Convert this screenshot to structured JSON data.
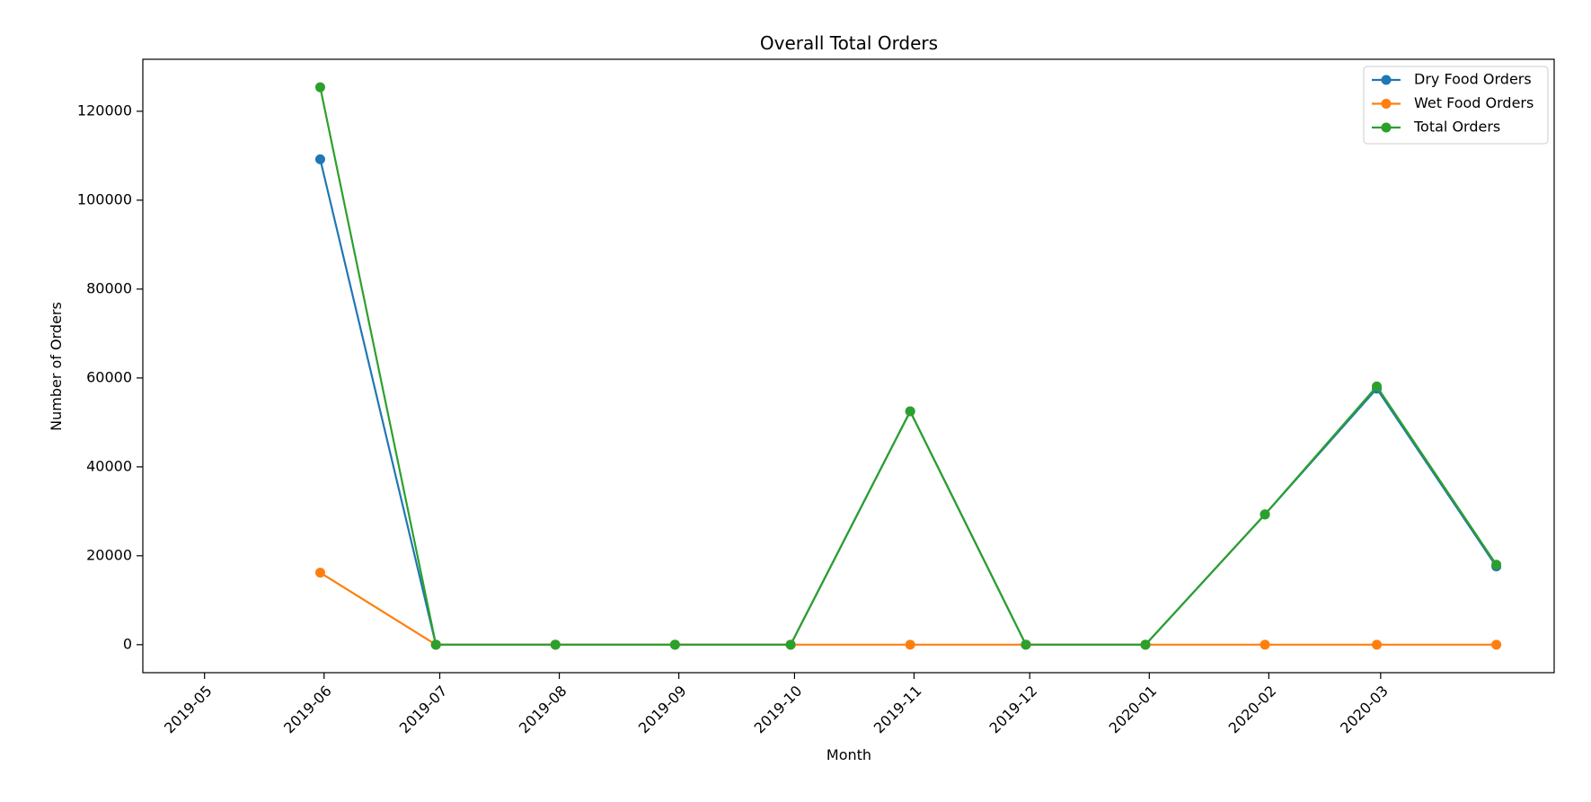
{
  "chart_data": {
    "type": "line",
    "title": "Overall Total Orders",
    "xlabel": "Month",
    "ylabel": "Number of Orders",
    "x_tick_labels": [
      "2019-05",
      "2019-06",
      "2019-07",
      "2019-08",
      "2019-09",
      "2019-10",
      "2019-11",
      "2019-12",
      "2020-01",
      "2020-02",
      "2020-03"
    ],
    "x_dates": [
      "2019-05-31",
      "2019-06-30",
      "2019-07-31",
      "2019-08-31",
      "2019-09-30",
      "2019-10-31",
      "2019-11-30",
      "2019-12-31",
      "2020-01-31",
      "2020-02-29",
      "2020-03-31"
    ],
    "x_tick_dates": [
      "2019-05-01",
      "2019-06-01",
      "2019-07-01",
      "2019-08-01",
      "2019-09-01",
      "2019-10-01",
      "2019-11-01",
      "2019-12-01",
      "2020-01-01",
      "2020-02-01",
      "2020-03-01"
    ],
    "y_ticks": [
      0,
      20000,
      40000,
      60000,
      80000,
      100000,
      120000
    ],
    "ylim": [
      -6300,
      131700
    ],
    "xlim": [
      "2019-04-15",
      "2020-04-15"
    ],
    "grid": false,
    "legend_position": "top-right",
    "series": [
      {
        "name": "Dry Food Orders",
        "color": "#1f77b4",
        "values": [
          109200,
          0,
          0,
          0,
          0,
          52500,
          0,
          0,
          29300,
          57600,
          17600
        ]
      },
      {
        "name": "Wet Food Orders",
        "color": "#ff7f0e",
        "values": [
          16200,
          0,
          0,
          0,
          0,
          0,
          0,
          0,
          0,
          0,
          0
        ]
      },
      {
        "name": "Total Orders",
        "color": "#2ca02c",
        "values": [
          125400,
          0,
          0,
          0,
          0,
          52500,
          0,
          0,
          29300,
          58100,
          18000
        ]
      }
    ]
  }
}
